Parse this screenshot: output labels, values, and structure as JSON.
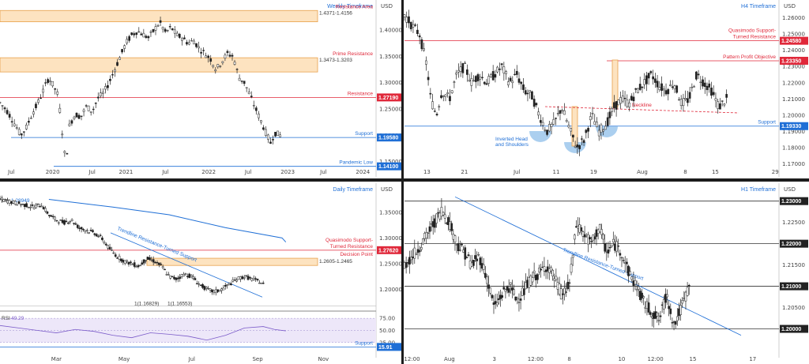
{
  "chart_data": [
    {
      "type": "candlestick",
      "timeframe": "Weekly Timeframe",
      "unit": "USD",
      "x_ticks": [
        "Jul",
        "2020",
        "Jul",
        "2021",
        "Jul",
        "2022",
        "Jul",
        "2023",
        "Jul",
        "2024"
      ],
      "y_ticks": [
        "1.40000",
        "1.35000",
        "1.30000",
        "1.25000",
        "1.20000",
        "1.15000"
      ],
      "ylim": [
        1.13,
        1.445
      ],
      "zones": [
        {
          "label": "Resistance Area",
          "range_label": "1.4371-1.4156",
          "from": 1.4156,
          "to": 1.4371
        },
        {
          "label": "Prime Resistance",
          "range_label": "1.3473-1.3203",
          "from": 1.3203,
          "to": 1.3473
        }
      ],
      "levels": [
        {
          "label": "Resistance",
          "value": "1.27190",
          "color": "#e0283a"
        },
        {
          "label": "Support",
          "value": "1.19580",
          "color": "#1f6fd6"
        },
        {
          "label": "Pandemic Low",
          "value": "1.14100",
          "color": "#1f6fd6"
        }
      ],
      "close_path": [
        [
          0.0,
          1.262
        ],
        [
          0.02,
          1.245
        ],
        [
          0.04,
          1.22
        ],
        [
          0.055,
          1.2
        ],
        [
          0.07,
          1.215
        ],
        [
          0.085,
          1.24
        ],
        [
          0.1,
          1.26
        ],
        [
          0.115,
          1.285
        ],
        [
          0.13,
          1.31
        ],
        [
          0.145,
          1.29
        ],
        [
          0.155,
          1.275
        ],
        [
          0.165,
          1.21
        ],
        [
          0.175,
          1.145
        ],
        [
          0.185,
          1.22
        ],
        [
          0.2,
          1.24
        ],
        [
          0.215,
          1.235
        ],
        [
          0.23,
          1.255
        ],
        [
          0.245,
          1.245
        ],
        [
          0.26,
          1.27
        ],
        [
          0.275,
          1.28
        ],
        [
          0.29,
          1.3
        ],
        [
          0.305,
          1.325
        ],
        [
          0.32,
          1.35
        ],
        [
          0.335,
          1.375
        ],
        [
          0.35,
          1.39
        ],
        [
          0.365,
          1.398
        ],
        [
          0.38,
          1.392
        ],
        [
          0.395,
          1.385
        ],
        [
          0.41,
          1.4
        ],
        [
          0.425,
          1.415
        ],
        [
          0.44,
          1.395
        ],
        [
          0.455,
          1.405
        ],
        [
          0.47,
          1.39
        ],
        [
          0.485,
          1.385
        ],
        [
          0.5,
          1.375
        ],
        [
          0.515,
          1.38
        ],
        [
          0.53,
          1.365
        ],
        [
          0.545,
          1.355
        ],
        [
          0.56,
          1.345
        ],
        [
          0.575,
          1.325
        ],
        [
          0.59,
          1.34
        ],
        [
          0.605,
          1.355
        ],
        [
          0.62,
          1.35
        ],
        [
          0.635,
          1.31
        ],
        [
          0.65,
          1.3
        ],
        [
          0.665,
          1.275
        ],
        [
          0.68,
          1.25
        ],
        [
          0.695,
          1.225
        ],
        [
          0.71,
          1.2
        ],
        [
          0.72,
          1.185
        ],
        [
          0.73,
          1.205
        ],
        [
          0.745,
          1.2
        ]
      ]
    },
    {
      "type": "candlestick",
      "timeframe": "H4 Timeframe",
      "unit": "USD",
      "x_ticks": [
        "13",
        "21",
        "Jul",
        "11",
        "19",
        "Aug",
        "8",
        "15",
        "29"
      ],
      "y_ticks": [
        "1.26000",
        "1.25000",
        "1.24000",
        "1.23000",
        "1.22000",
        "1.21000",
        "1.20000",
        "1.19000",
        "1.18000",
        "1.17000"
      ],
      "ylim": [
        1.165,
        1.267
      ],
      "levels": [
        {
          "label": "Quasimodo Support-Turned Resistance",
          "value": "1.24580",
          "color": "#e0283a"
        },
        {
          "label": "Pattern Profit Objective",
          "value": "1.23350",
          "color": "#e0283a"
        },
        {
          "label": "Support",
          "value": "1.19330",
          "color": "#1f6fd6"
        }
      ],
      "annotations": [
        "Inverted Head and Shoulders",
        "Neckline"
      ],
      "close_path": [
        [
          0.0,
          1.262
        ],
        [
          0.02,
          1.255
        ],
        [
          0.04,
          1.25
        ],
        [
          0.06,
          1.23
        ],
        [
          0.07,
          1.21
        ],
        [
          0.085,
          1.2
        ],
        [
          0.1,
          1.215
        ],
        [
          0.12,
          1.21
        ],
        [
          0.14,
          1.225
        ],
        [
          0.16,
          1.23
        ],
        [
          0.18,
          1.22
        ],
        [
          0.2,
          1.225
        ],
        [
          0.22,
          1.22
        ],
        [
          0.24,
          1.225
        ],
        [
          0.26,
          1.23
        ],
        [
          0.28,
          1.22
        ],
        [
          0.3,
          1.225
        ],
        [
          0.32,
          1.215
        ],
        [
          0.34,
          1.212
        ],
        [
          0.36,
          1.2
        ],
        [
          0.38,
          1.19
        ],
        [
          0.4,
          1.195
        ],
        [
          0.42,
          1.205
        ],
        [
          0.44,
          1.192
        ],
        [
          0.46,
          1.18
        ],
        [
          0.48,
          1.185
        ],
        [
          0.5,
          1.2
        ],
        [
          0.52,
          1.19
        ],
        [
          0.54,
          1.195
        ],
        [
          0.56,
          1.205
        ],
        [
          0.58,
          1.21
        ],
        [
          0.6,
          1.207
        ],
        [
          0.62,
          1.215
        ],
        [
          0.64,
          1.22
        ],
        [
          0.66,
          1.225
        ],
        [
          0.68,
          1.218
        ],
        [
          0.7,
          1.215
        ],
        [
          0.72,
          1.22
        ],
        [
          0.74,
          1.207
        ],
        [
          0.76,
          1.21
        ],
        [
          0.78,
          1.225
        ],
        [
          0.8,
          1.22
        ],
        [
          0.82,
          1.215
        ],
        [
          0.84,
          1.205
        ],
        [
          0.86,
          1.21
        ]
      ]
    },
    {
      "type": "candlestick",
      "timeframe": "Daily Timeframe",
      "unit": "USD",
      "ma_label": "MA",
      "ma_value": "1.28949",
      "x_ticks": [
        "Mar",
        "May",
        "Jul",
        "Sep",
        "Nov"
      ],
      "y_ticks": [
        "1.35000",
        "1.30000",
        "1.25000",
        "1.20000"
      ],
      "ylim": [
        1.17,
        1.385
      ],
      "zones": [
        {
          "label": "Decision Point",
          "range_label": "1.2605-1.2465",
          "from": 1.2465,
          "to": 1.2605
        }
      ],
      "levels": [
        {
          "label": "Quasimodo Support-Turned Resistance",
          "value": "1.27620",
          "color": "#e0283a"
        }
      ],
      "annotations": [
        "Trendline Resistance-Turned Support",
        "1(1.16829)",
        "1(1.16553)"
      ],
      "close_path": [
        [
          0.0,
          1.375
        ],
        [
          0.03,
          1.37
        ],
        [
          0.06,
          1.365
        ],
        [
          0.09,
          1.36
        ],
        [
          0.11,
          1.365
        ],
        [
          0.13,
          1.345
        ],
        [
          0.15,
          1.335
        ],
        [
          0.17,
          1.33
        ],
        [
          0.19,
          1.335
        ],
        [
          0.21,
          1.32
        ],
        [
          0.23,
          1.315
        ],
        [
          0.25,
          1.31
        ],
        [
          0.27,
          1.3
        ],
        [
          0.29,
          1.28
        ],
        [
          0.31,
          1.265
        ],
        [
          0.33,
          1.255
        ],
        [
          0.35,
          1.25
        ],
        [
          0.37,
          1.245
        ],
        [
          0.39,
          1.26
        ],
        [
          0.41,
          1.255
        ],
        [
          0.43,
          1.245
        ],
        [
          0.45,
          1.225
        ],
        [
          0.47,
          1.22
        ],
        [
          0.49,
          1.23
        ],
        [
          0.51,
          1.225
        ],
        [
          0.53,
          1.21
        ],
        [
          0.55,
          1.2
        ],
        [
          0.57,
          1.195
        ],
        [
          0.59,
          1.2
        ],
        [
          0.61,
          1.21
        ],
        [
          0.63,
          1.22
        ],
        [
          0.65,
          1.225
        ],
        [
          0.67,
          1.22
        ],
        [
          0.69,
          1.215
        ],
        [
          0.7,
          1.21
        ]
      ],
      "ma_path": [
        [
          0.13,
          1.375
        ],
        [
          0.3,
          1.36
        ],
        [
          0.45,
          1.345
        ],
        [
          0.6,
          1.32
        ],
        [
          0.75,
          1.3
        ],
        [
          0.76,
          1.292
        ]
      ],
      "indicator": {
        "name": "RSI",
        "value": "49.29",
        "y_ticks": [
          "75.00",
          "50.00",
          "25.00"
        ],
        "levels": [
          {
            "label": "Support",
            "value": "15.91"
          }
        ],
        "ylim": [
          10,
          85
        ],
        "path": [
          [
            0.0,
            60
          ],
          [
            0.05,
            55
          ],
          [
            0.1,
            50
          ],
          [
            0.15,
            45
          ],
          [
            0.2,
            52
          ],
          [
            0.25,
            48
          ],
          [
            0.3,
            40
          ],
          [
            0.35,
            35
          ],
          [
            0.4,
            45
          ],
          [
            0.45,
            42
          ],
          [
            0.5,
            38
          ],
          [
            0.55,
            30
          ],
          [
            0.6,
            40
          ],
          [
            0.65,
            55
          ],
          [
            0.7,
            58
          ],
          [
            0.73,
            52
          ],
          [
            0.76,
            49
          ]
        ]
      }
    },
    {
      "type": "candlestick",
      "timeframe": "H1 Timeframe",
      "unit": "USD",
      "x_ticks": [
        "12:00",
        "Aug",
        "3",
        "12:00",
        "8",
        "10",
        "12:00",
        "15",
        "17"
      ],
      "y_ticks": [
        "1.23000",
        "1.22500",
        "1.22000",
        "1.21500",
        "1.21000",
        "1.20500",
        "1.20000"
      ],
      "ylim": [
        1.1975,
        1.2305
      ],
      "levels": [
        {
          "label": "",
          "value": "1.23000",
          "color": "#222222"
        },
        {
          "label": "",
          "value": "1.22000",
          "color": "#222222"
        },
        {
          "label": "",
          "value": "1.21000",
          "color": "#222222"
        },
        {
          "label": "",
          "value": "1.20000",
          "color": "#222222"
        }
      ],
      "annotations": [
        "Trendline Resistance-Turned Support"
      ],
      "close_path": [
        [
          0.0,
          1.215
        ],
        [
          0.03,
          1.218
        ],
        [
          0.06,
          1.222
        ],
        [
          0.08,
          1.225
        ],
        [
          0.1,
          1.228
        ],
        [
          0.12,
          1.225
        ],
        [
          0.14,
          1.22
        ],
        [
          0.16,
          1.218
        ],
        [
          0.18,
          1.215
        ],
        [
          0.2,
          1.217
        ],
        [
          0.22,
          1.212
        ],
        [
          0.24,
          1.205
        ],
        [
          0.26,
          1.208
        ],
        [
          0.28,
          1.21
        ],
        [
          0.3,
          1.207
        ],
        [
          0.32,
          1.209
        ],
        [
          0.34,
          1.212
        ],
        [
          0.36,
          1.213
        ],
        [
          0.38,
          1.215
        ],
        [
          0.4,
          1.212
        ],
        [
          0.42,
          1.208
        ],
        [
          0.44,
          1.21
        ],
        [
          0.46,
          1.225
        ],
        [
          0.48,
          1.222
        ],
        [
          0.5,
          1.22
        ],
        [
          0.52,
          1.224
        ],
        [
          0.54,
          1.218
        ],
        [
          0.56,
          1.22
        ],
        [
          0.58,
          1.218
        ],
        [
          0.6,
          1.213
        ],
        [
          0.62,
          1.21
        ],
        [
          0.64,
          1.206
        ],
        [
          0.66,
          1.204
        ],
        [
          0.68,
          1.202
        ],
        [
          0.7,
          1.208
        ],
        [
          0.72,
          1.201
        ],
        [
          0.74,
          1.205
        ],
        [
          0.76,
          1.21
        ]
      ]
    }
  ]
}
